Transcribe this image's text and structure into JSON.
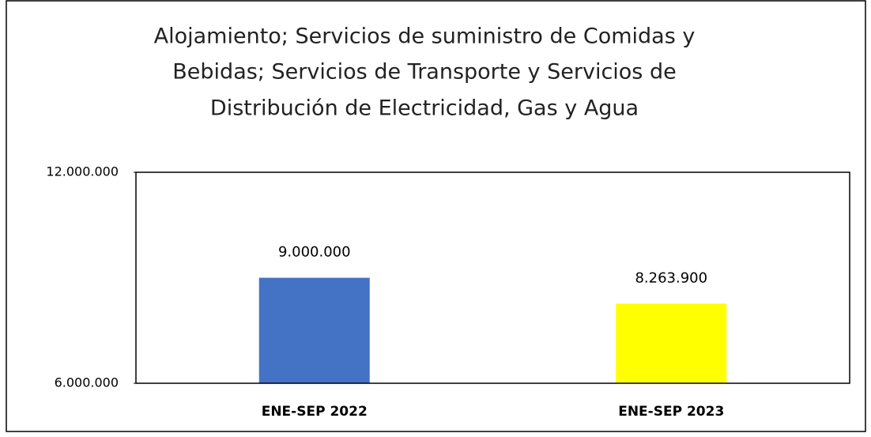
{
  "chart_data": {
    "type": "bar",
    "title": [
      "Alojamiento; Servicios de suministro de Comidas y",
      "Bebidas; Servicios de Transporte y Servicios de",
      "Distribución de Electricidad, Gas y Agua"
    ],
    "categories": [
      "ENE-SEP 2022",
      "ENE-SEP 2023"
    ],
    "values": [
      9000000,
      8263900
    ],
    "value_labels": [
      "9.000.000",
      "8.263.900"
    ],
    "colors": [
      "#4472c4",
      "#ffff00"
    ],
    "ylim": [
      6000000,
      12000000
    ],
    "yticks": [
      {
        "value": 6000000,
        "label": "6.000.000"
      },
      {
        "value": 12000000,
        "label": "12.000.000"
      }
    ],
    "grid": false
  }
}
